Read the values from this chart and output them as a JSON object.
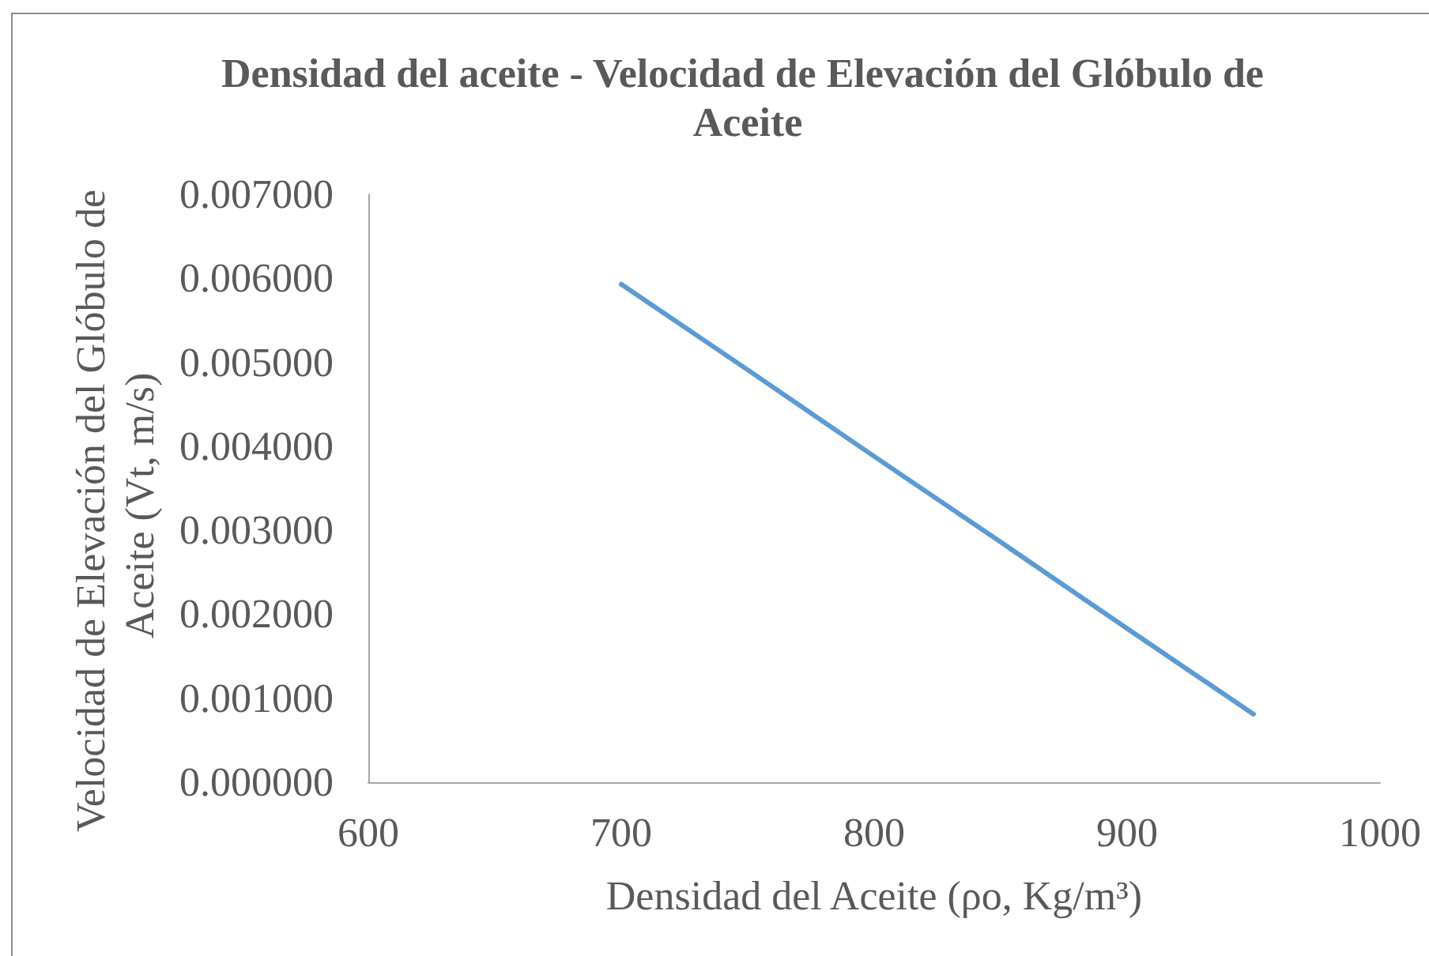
{
  "chart_data": {
    "type": "line",
    "title": "Densidad del aceite - Velocidad de Elevación del Glóbulo de Aceite",
    "xlabel": "Densidad del Aceite (ρo, Kg/m³)",
    "ylabel": "Velocidad de Elevación del Glóbulo de Aceite (Vt, m/s)",
    "x": [
      700,
      750,
      800,
      850,
      900,
      950
    ],
    "values": [
      0.00593,
      0.00491,
      0.00388,
      0.00286,
      0.00183,
      0.00081
    ],
    "color": "#5b9bd5",
    "xlim": [
      600,
      1000
    ],
    "xticks": [
      600,
      700,
      800,
      900,
      1000
    ],
    "ylim": [
      0,
      0.007
    ],
    "yticks": [
      {
        "value": 0,
        "label": "0.000000"
      },
      {
        "value": 0.001,
        "label": "0.001000"
      },
      {
        "value": 0.002,
        "label": "0.002000"
      },
      {
        "value": 0.003,
        "label": "0.003000"
      },
      {
        "value": 0.004,
        "label": "0.004000"
      },
      {
        "value": 0.005,
        "label": "0.005000"
      },
      {
        "value": 0.006,
        "label": "0.006000"
      },
      {
        "value": 0.007,
        "label": "0.007000"
      }
    ],
    "grid": false
  }
}
